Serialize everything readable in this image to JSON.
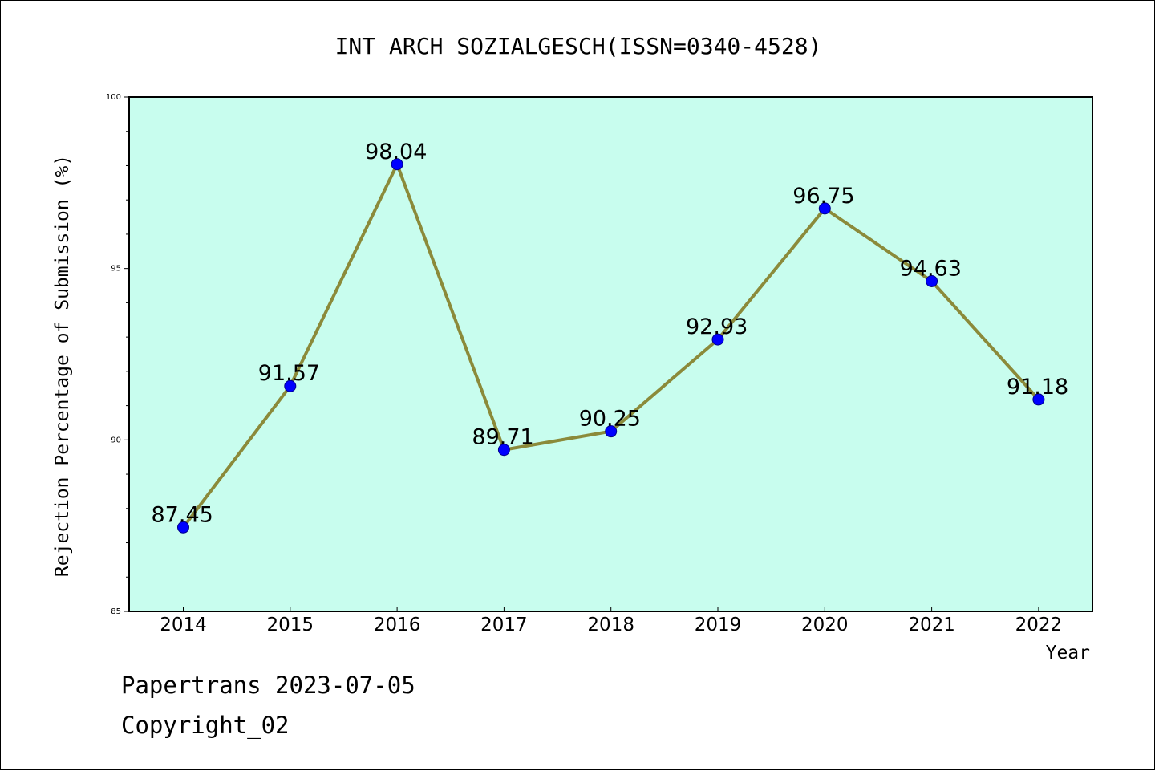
{
  "chart_data": {
    "type": "line",
    "title": "INT ARCH SOZIALGESCH(ISSN=0340-4528)",
    "xlabel": "Year",
    "ylabel": "Rejection Percentage of Submission (%)",
    "categories": [
      "2014",
      "2015",
      "2016",
      "2017",
      "2018",
      "2019",
      "2020",
      "2021",
      "2022"
    ],
    "values": [
      87.45,
      91.57,
      98.04,
      89.71,
      90.25,
      92.93,
      96.75,
      94.63,
      91.18
    ],
    "data_labels": [
      "87.45",
      "91.57",
      "98.04",
      "89.71",
      "90.25",
      "92.93",
      "96.75",
      "94.63",
      "91.18"
    ],
    "ylim": [
      85,
      100
    ],
    "yticks": [
      "85",
      "90",
      "95",
      "100"
    ],
    "grid": false,
    "legend": "none",
    "colors": {
      "plot_background": "#c8fdee",
      "line": "#8b8a3a",
      "marker": "#0000ff",
      "marker_edge": "#00008b"
    }
  },
  "footer": {
    "line1": "Papertrans 2023-07-05",
    "line2": "Copyright_02"
  }
}
